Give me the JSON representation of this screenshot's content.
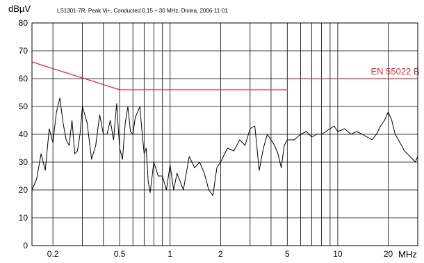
{
  "chart_data": {
    "type": "line",
    "title": "LS1301-7R, Peak Vi+, Conducted 0,15 ÷ 30 MHz, Divina, 2006-11-01",
    "ylabel": "dBµV",
    "xunit": "MHz",
    "xscale": "log",
    "xlim": [
      0.15,
      30
    ],
    "ylim": [
      0,
      80
    ],
    "grid": true,
    "yticks": [
      0,
      10,
      20,
      30,
      40,
      50,
      60,
      70,
      80
    ],
    "xtick_labels": [
      {
        "x": 0.2,
        "label": "0.2"
      },
      {
        "x": 0.5,
        "label": "0.5"
      },
      {
        "x": 1,
        "label": "1"
      },
      {
        "x": 2,
        "label": "2"
      },
      {
        "x": 5,
        "label": "5"
      },
      {
        "x": 10,
        "label": "10"
      },
      {
        "x": 20,
        "label": "20"
      }
    ],
    "series": [
      {
        "name": "",
        "color": "#000000",
        "x": [
          0.15,
          0.16,
          0.17,
          0.18,
          0.19,
          0.2,
          0.21,
          0.22,
          0.23,
          0.24,
          0.25,
          0.26,
          0.27,
          0.28,
          0.29,
          0.3,
          0.32,
          0.34,
          0.36,
          0.38,
          0.4,
          0.42,
          0.44,
          0.46,
          0.48,
          0.5,
          0.52,
          0.54,
          0.56,
          0.58,
          0.6,
          0.62,
          0.64,
          0.66,
          0.68,
          0.7,
          0.72,
          0.74,
          0.76,
          0.8,
          0.85,
          0.9,
          0.95,
          1.0,
          1.05,
          1.1,
          1.2,
          1.3,
          1.4,
          1.5,
          1.6,
          1.7,
          1.8,
          1.9,
          2.0,
          2.2,
          2.4,
          2.6,
          2.8,
          3.0,
          3.2,
          3.4,
          3.6,
          3.8,
          4.0,
          4.2,
          4.4,
          4.6,
          4.8,
          5.0,
          5.5,
          6,
          6.5,
          7,
          7.5,
          8,
          8.5,
          9,
          9.5,
          10,
          11,
          12,
          13,
          14,
          15,
          16,
          17,
          18,
          19,
          20,
          21,
          22,
          23,
          24,
          25,
          26,
          27,
          28,
          29,
          30
        ],
        "values": [
          20,
          24,
          33,
          27,
          42,
          37,
          48,
          53,
          44,
          38,
          36,
          45,
          33,
          34,
          40,
          50,
          44,
          31,
          36,
          47,
          40,
          40,
          45,
          38,
          51,
          35,
          31,
          44,
          50,
          41,
          40,
          46,
          48,
          50,
          41,
          33,
          35,
          23,
          19,
          30,
          25,
          25,
          20,
          29,
          20,
          26,
          20,
          32,
          28,
          30,
          26,
          20,
          18,
          28,
          30,
          35,
          34,
          38,
          36,
          42,
          43,
          27,
          35,
          40,
          38,
          36,
          33,
          28,
          36,
          38,
          38,
          40,
          41,
          39,
          40,
          40,
          41,
          42,
          43,
          41,
          42,
          40,
          41,
          40,
          39,
          38,
          40,
          43,
          45,
          48,
          45,
          40,
          38,
          36,
          34,
          33,
          32,
          31,
          30,
          32
        ]
      }
    ],
    "limit_line": {
      "name": "EN 55022 B",
      "color": "#e03030",
      "segments": [
        {
          "x": [
            0.15,
            0.5
          ],
          "y": [
            66,
            56
          ]
        },
        {
          "x": [
            0.5,
            5
          ],
          "y": [
            56,
            56
          ]
        },
        {
          "x": [
            5,
            30
          ],
          "y": [
            60,
            60
          ]
        }
      ]
    }
  }
}
